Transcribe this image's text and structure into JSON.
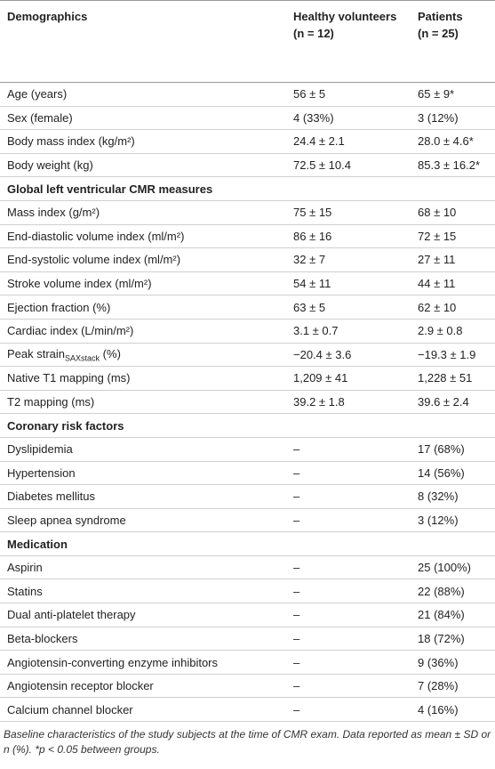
{
  "table": {
    "header": [
      "Demographics",
      {
        "label": "Healthy volunteers",
        "n": "(n = 12)"
      },
      {
        "label": "Patients",
        "n": "(n = 25)"
      }
    ],
    "rows": [
      [
        "Age (years)",
        "56 ± 5",
        "65 ± 9*"
      ],
      [
        "Sex (female)",
        "4 (33%)",
        "3 (12%)"
      ],
      [
        "Body mass index (kg/m²)",
        "24.4 ± 2.1",
        "28.0 ± 4.6*"
      ],
      [
        "Body weight (kg)",
        "72.5 ± 10.4",
        "85.3 ± 16.2*"
      ],
      [
        "Global left ventricular CMR measures"
      ],
      [
        "Mass index (g/m²)",
        "75 ± 15",
        "68 ± 10"
      ],
      [
        "End-diastolic volume index (ml/m²)",
        "86 ± 16",
        "72 ± 15"
      ],
      [
        "End-systolic volume index (ml/m²)",
        "32 ± 7",
        "27 ± 11"
      ],
      [
        "Stroke volume index (ml/m²)",
        "54 ± 11",
        "44 ± 11"
      ],
      [
        "Ejection fraction (%)",
        "63 ± 5",
        "62 ± 10"
      ],
      [
        "Cardiac index (L/min/m²)",
        "3.1 ± 0.7",
        "2.9 ± 0.8"
      ],
      [
        {
          "text": "Peak strain",
          "sub": "SAXstack",
          "after": " (%)"
        },
        "−20.4 ± 3.6",
        "−19.3 ± 1.9"
      ],
      [
        "Native T1 mapping (ms)",
        "1,209 ± 41",
        "1,228 ± 51"
      ],
      [
        "T2 mapping (ms)",
        "39.2 ± 1.8",
        "39.6 ± 2.4"
      ],
      [
        "Coronary risk factors"
      ],
      [
        "Dyslipidemia",
        "–",
        "17 (68%)"
      ],
      [
        "Hypertension",
        "–",
        "14 (56%)"
      ],
      [
        "Diabetes mellitus",
        "–",
        "8 (32%)"
      ],
      [
        "Sleep apnea syndrome",
        "–",
        "3 (12%)"
      ],
      [
        "Medication"
      ],
      [
        "Aspirin",
        "–",
        "25 (100%)"
      ],
      [
        "Statins",
        "–",
        "22 (88%)"
      ],
      [
        "Dual anti-platelet therapy",
        "–",
        "21 (84%)"
      ],
      [
        "Beta-blockers",
        "–",
        "18 (72%)"
      ],
      [
        "Angiotensin-converting enzyme inhibitors",
        "–",
        "9 (36%)"
      ],
      [
        "Angiotensin receptor blocker",
        "–",
        "7 (28%)"
      ],
      [
        "Calcium channel blocker",
        "–",
        "4 (16%)"
      ]
    ]
  },
  "caption": "Baseline characteristics of the study subjects at the time of CMR exam. Data reported as mean ± SD or n (%). *p < 0.05 between groups."
}
